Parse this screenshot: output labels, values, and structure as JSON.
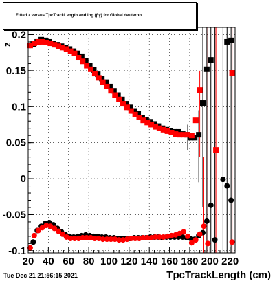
{
  "title": "Fitted  z  versus TpcTrackLength and log  (βγ) for Global deuteron",
  "footer_timestamp": "Tue Dec 21 21:56:15 2021",
  "y_axis_label": "z",
  "chart_data": {
    "type": "scatter",
    "title": "Fitted  z  versus TpcTrackLength and log  (βγ) for Global deuteron",
    "xlabel": "TpcTrackLength (cm)",
    "ylabel": "z",
    "xlim": [
      20,
      225
    ],
    "ylim": [
      -0.103,
      0.21
    ],
    "x_ticks": [
      20,
      40,
      60,
      80,
      100,
      120,
      140,
      160,
      180,
      200,
      220
    ],
    "x_tick_labels": [
      "20",
      "40",
      "60",
      "80",
      "100",
      "120",
      "140",
      "160",
      "180",
      "200",
      "220"
    ],
    "y_ticks": [
      -0.1,
      -0.05,
      0,
      0.05,
      0.1,
      0.15,
      0.2
    ],
    "y_tick_labels": [
      "-0.1",
      "-0.05",
      "0",
      "0.05",
      "0.1",
      "0.15",
      "0.2"
    ],
    "grid": true,
    "colors": {
      "black_series": "#000000",
      "red_series": "#ff0000"
    },
    "series": [
      {
        "marker": "square",
        "color": "#000000",
        "points": [
          [
            25,
            0.187
          ],
          [
            29,
            0.19
          ],
          [
            33,
            0.193
          ],
          [
            37,
            0.192
          ],
          [
            41,
            0.19
          ],
          [
            45,
            0.188
          ],
          [
            49,
            0.186
          ],
          [
            53,
            0.184
          ],
          [
            57,
            0.182
          ],
          [
            61,
            0.18
          ],
          [
            65,
            0.177
          ],
          [
            69,
            0.174
          ],
          [
            73,
            0.17
          ],
          [
            77,
            0.164
          ],
          [
            81,
            0.157
          ],
          [
            85,
            0.151
          ],
          [
            89,
            0.145
          ],
          [
            93,
            0.139
          ],
          [
            97,
            0.134
          ],
          [
            101,
            0.128
          ],
          [
            105,
            0.122
          ],
          [
            109,
            0.116
          ],
          [
            113,
            0.11
          ],
          [
            117,
            0.104
          ],
          [
            121,
            0.099
          ],
          [
            125,
            0.094
          ],
          [
            129,
            0.09
          ],
          [
            133,
            0.085
          ],
          [
            137,
            0.082
          ],
          [
            141,
            0.079
          ],
          [
            145,
            0.076
          ],
          [
            149,
            0.073
          ],
          [
            153,
            0.07
          ],
          [
            157,
            0.068
          ],
          [
            161,
            0.066
          ],
          [
            165,
            0.065
          ],
          [
            169,
            0.065
          ],
          [
            173,
            0.062
          ],
          [
            177,
            0.061
          ],
          [
            181,
            0.057
          ],
          [
            185,
            0.057
          ],
          [
            189,
            0.061
          ],
          [
            193,
            0.105
          ],
          [
            197,
            0.152
          ],
          [
            201,
            0.165
          ],
          [
            217,
            0.19
          ],
          [
            221,
            0.192
          ]
        ]
      },
      {
        "marker": "circle",
        "color": "#000000",
        "points": [
          [
            25,
            -0.088
          ],
          [
            29,
            -0.072
          ],
          [
            33,
            -0.066
          ],
          [
            37,
            -0.062
          ],
          [
            41,
            -0.061
          ],
          [
            45,
            -0.064
          ],
          [
            49,
            -0.069
          ],
          [
            53,
            -0.074
          ],
          [
            57,
            -0.078
          ],
          [
            61,
            -0.08
          ],
          [
            65,
            -0.081
          ],
          [
            69,
            -0.08
          ],
          [
            73,
            -0.079
          ],
          [
            77,
            -0.078
          ],
          [
            81,
            -0.079
          ],
          [
            85,
            -0.08
          ],
          [
            89,
            -0.08
          ],
          [
            93,
            -0.081
          ],
          [
            97,
            -0.081
          ],
          [
            101,
            -0.082
          ],
          [
            105,
            -0.082
          ],
          [
            109,
            -0.083
          ],
          [
            113,
            -0.083
          ],
          [
            117,
            -0.083
          ],
          [
            121,
            -0.083
          ],
          [
            125,
            -0.082
          ],
          [
            129,
            -0.082
          ],
          [
            133,
            -0.082
          ],
          [
            137,
            -0.082
          ],
          [
            141,
            -0.081
          ],
          [
            145,
            -0.081
          ],
          [
            149,
            -0.081
          ],
          [
            153,
            -0.082
          ],
          [
            157,
            -0.081
          ],
          [
            161,
            -0.081
          ],
          [
            165,
            -0.081
          ],
          [
            169,
            -0.081
          ],
          [
            173,
            -0.081
          ],
          [
            177,
            -0.082
          ],
          [
            181,
            -0.083
          ],
          [
            185,
            -0.084
          ],
          [
            189,
            -0.079
          ],
          [
            193,
            -0.075
          ],
          [
            197,
            -0.059
          ],
          [
            201,
            -0.037
          ],
          [
            205,
            -0.085
          ],
          [
            213,
            -0.001
          ],
          [
            217,
            -0.01
          ],
          [
            221,
            -0.03
          ]
        ],
        "errors": {
          "205": 0.04,
          "201": 0.03
        }
      },
      {
        "marker": "square",
        "color": "#ff0000",
        "points": [
          [
            22,
            0.185
          ],
          [
            26,
            0.188
          ],
          [
            30,
            0.19
          ],
          [
            34,
            0.19
          ],
          [
            38,
            0.189
          ],
          [
            42,
            0.188
          ],
          [
            46,
            0.186
          ],
          [
            50,
            0.184
          ],
          [
            54,
            0.182
          ],
          [
            58,
            0.18
          ],
          [
            62,
            0.177
          ],
          [
            66,
            0.174
          ],
          [
            70,
            0.168
          ],
          [
            74,
            0.163
          ],
          [
            78,
            0.157
          ],
          [
            82,
            0.152
          ],
          [
            86,
            0.146
          ],
          [
            90,
            0.14
          ],
          [
            94,
            0.134
          ],
          [
            98,
            0.128
          ],
          [
            102,
            0.122
          ],
          [
            106,
            0.116
          ],
          [
            110,
            0.11
          ],
          [
            114,
            0.104
          ],
          [
            118,
            0.099
          ],
          [
            122,
            0.094
          ],
          [
            126,
            0.089
          ],
          [
            130,
            0.085
          ],
          [
            134,
            0.081
          ],
          [
            138,
            0.078
          ],
          [
            142,
            0.075
          ],
          [
            146,
            0.072
          ],
          [
            150,
            0.07
          ],
          [
            154,
            0.068
          ],
          [
            158,
            0.066
          ],
          [
            162,
            0.064
          ],
          [
            166,
            0.062
          ],
          [
            170,
            0.061
          ],
          [
            174,
            0.061
          ],
          [
            178,
            0.061
          ],
          [
            182,
            0.06
          ],
          [
            186,
            0.081
          ],
          [
            190,
            0.123
          ],
          [
            206,
            0.04
          ],
          [
            222,
            0.147
          ]
        ],
        "errors": {
          "206": 0.06,
          "222": 0.2
        }
      },
      {
        "marker": "circle",
        "color": "#ff0000",
        "points": [
          [
            22,
            -0.096
          ],
          [
            26,
            -0.079
          ],
          [
            30,
            -0.072
          ],
          [
            34,
            -0.068
          ],
          [
            38,
            -0.065
          ],
          [
            42,
            -0.066
          ],
          [
            46,
            -0.069
          ],
          [
            50,
            -0.073
          ],
          [
            54,
            -0.077
          ],
          [
            58,
            -0.081
          ],
          [
            62,
            -0.083
          ],
          [
            66,
            -0.083
          ],
          [
            70,
            -0.083
          ],
          [
            74,
            -0.082
          ],
          [
            78,
            -0.082
          ],
          [
            82,
            -0.082
          ],
          [
            86,
            -0.083
          ],
          [
            90,
            -0.083
          ],
          [
            94,
            -0.084
          ],
          [
            98,
            -0.084
          ],
          [
            102,
            -0.084
          ],
          [
            106,
            -0.084
          ],
          [
            110,
            -0.085
          ],
          [
            114,
            -0.085
          ],
          [
            118,
            -0.084
          ],
          [
            122,
            -0.083
          ],
          [
            126,
            -0.083
          ],
          [
            130,
            -0.083
          ],
          [
            134,
            -0.082
          ],
          [
            138,
            -0.082
          ],
          [
            142,
            -0.082
          ],
          [
            146,
            -0.081
          ],
          [
            150,
            -0.081
          ],
          [
            154,
            -0.081
          ],
          [
            158,
            -0.08
          ],
          [
            162,
            -0.079
          ],
          [
            166,
            -0.078
          ],
          [
            170,
            -0.076
          ],
          [
            174,
            -0.074
          ],
          [
            178,
            -0.08
          ],
          [
            182,
            -0.089
          ],
          [
            186,
            -0.085
          ],
          [
            190,
            -0.077
          ],
          [
            194,
            -0.066
          ],
          [
            198,
            -0.09
          ],
          [
            222,
            -0.088
          ]
        ],
        "errors": {
          "194": 0.03,
          "198": 0.05
        }
      }
    ],
    "error_bars": [
      {
        "x": 178,
        "y_low": 0.04,
        "y_high": 0.075,
        "color": "#000000"
      },
      {
        "x": 189,
        "y_low": -0.005,
        "y_high": 0.095,
        "color": "#000000"
      },
      {
        "x": 193,
        "y_low": -0.04,
        "y_high": 0.21,
        "color": "#000000"
      },
      {
        "x": 197,
        "y_low": -0.103,
        "y_high": 0.21,
        "color": "#000000"
      },
      {
        "x": 201,
        "y_low": -0.103,
        "y_high": 0.21,
        "color": "#000000"
      },
      {
        "x": 205,
        "y_low": -0.103,
        "y_high": 0.21,
        "color": "#000000"
      },
      {
        "x": 213,
        "y_low": -0.103,
        "y_high": 0.21,
        "color": "#000000"
      },
      {
        "x": 217,
        "y_low": -0.103,
        "y_high": 0.21,
        "color": "#000000"
      },
      {
        "x": 221,
        "y_low": -0.103,
        "y_high": 0.21,
        "color": "#000000"
      },
      {
        "x": 190,
        "y_low": 0.03,
        "y_high": 0.15,
        "color": "#ff0000"
      },
      {
        "x": 194,
        "y_low": -0.103,
        "y_high": 0.03,
        "color": "#ff0000"
      },
      {
        "x": 198,
        "y_low": -0.103,
        "y_high": 0.21,
        "color": "#ff0000"
      },
      {
        "x": 206,
        "y_low": -0.103,
        "y_high": 0.21,
        "color": "#ff0000"
      },
      {
        "x": 222,
        "y_low": -0.103,
        "y_high": 0.21,
        "color": "#ff0000"
      }
    ]
  }
}
